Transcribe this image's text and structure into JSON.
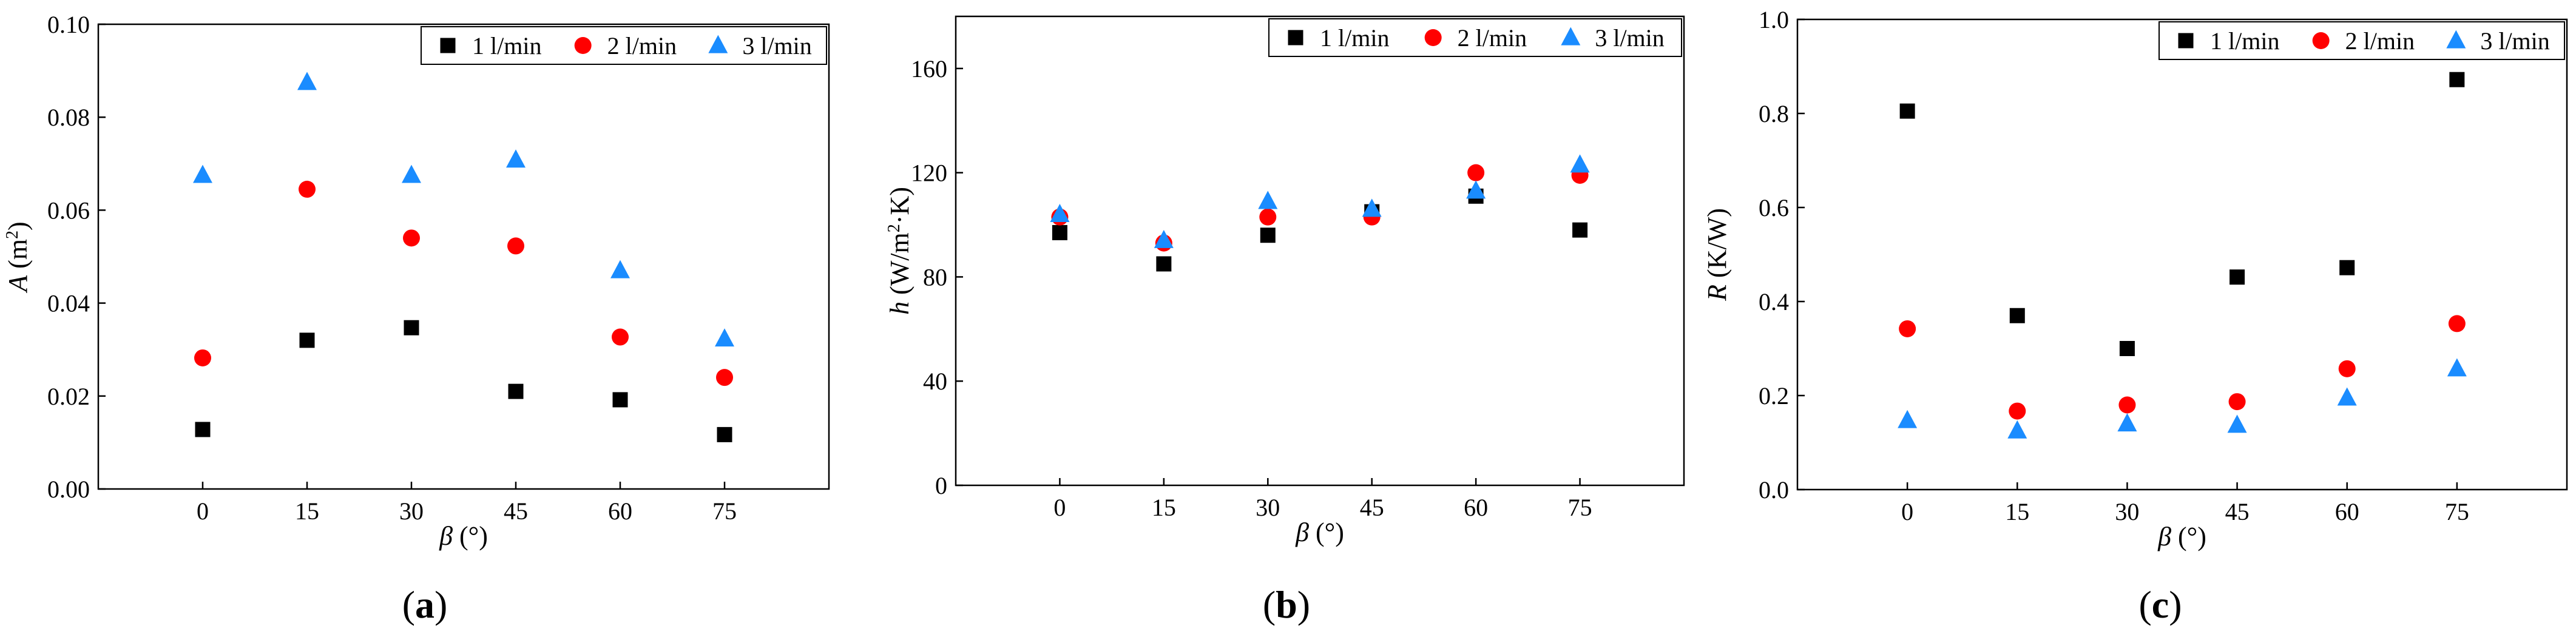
{
  "chart_data": [
    {
      "type": "scatter",
      "panel": "a",
      "panel_label": "(a)",
      "panel_letter": "a",
      "ylabel_var": "A",
      "ylabel_unit_pre": " (m",
      "ylabel_unit_sup": "2",
      "ylabel_unit_post": ")",
      "xlabel_var": "β",
      "xlabel_unit": " (°)",
      "x": [
        0,
        15,
        30,
        45,
        60,
        75
      ],
      "xticks": [
        "0",
        "15",
        "30",
        "45",
        "60",
        "75"
      ],
      "xlim": [
        -15,
        90
      ],
      "ylim": [
        0,
        0.1
      ],
      "yticks": [
        0,
        0.02,
        0.04,
        0.06,
        0.08,
        0.1
      ],
      "ytick_labels": [
        "0.00",
        "0.02",
        "0.04",
        "0.06",
        "0.08",
        "0.10"
      ],
      "legend_position": "top-right",
      "series": [
        {
          "name": "1 l/min",
          "marker": "square",
          "color": "#000000",
          "values": [
            0.0128,
            0.032,
            0.0347,
            0.021,
            0.0192,
            0.0117
          ]
        },
        {
          "name": "2 l/min",
          "marker": "circle",
          "color": "#ff0000",
          "values": [
            0.0282,
            0.0645,
            0.054,
            0.0523,
            0.0327,
            0.024
          ]
        },
        {
          "name": "3 l/min",
          "marker": "triangle",
          "color": "#1a8cff",
          "values": [
            0.0675,
            0.0875,
            0.0675,
            0.0708,
            0.047,
            0.0323
          ]
        }
      ]
    },
    {
      "type": "scatter",
      "panel": "b",
      "panel_label": "(b)",
      "panel_letter": "b",
      "ylabel_var": "h",
      "ylabel_unit_pre": " (W/m",
      "ylabel_unit_sup": "2",
      "ylabel_unit_post": "·K)",
      "xlabel_var": "β",
      "xlabel_unit": " (°)",
      "x": [
        0,
        15,
        30,
        45,
        60,
        75
      ],
      "xticks": [
        "0",
        "15",
        "30",
        "45",
        "60",
        "75"
      ],
      "xlim": [
        -15,
        90
      ],
      "ylim": [
        0,
        180
      ],
      "yticks": [
        0,
        40,
        80,
        120,
        160
      ],
      "ytick_labels": [
        "0",
        "40",
        "80",
        "120",
        "160"
      ],
      "legend_position": "top-right",
      "series": [
        {
          "name": "1 l/min",
          "marker": "square",
          "color": "#000000",
          "values": [
            97,
            85,
            96,
            105,
            111,
            98
          ]
        },
        {
          "name": "2 l/min",
          "marker": "circle",
          "color": "#ff0000",
          "values": [
            103,
            93,
            103,
            103,
            120,
            119
          ]
        },
        {
          "name": "3 l/min",
          "marker": "triangle",
          "color": "#1a8cff",
          "values": [
            104,
            94,
            109,
            106,
            113,
            123
          ]
        }
      ]
    },
    {
      "type": "scatter",
      "panel": "c",
      "panel_label": "(c)",
      "panel_letter": "c",
      "ylabel_var": "R",
      "ylabel_unit_pre": " (K/W)",
      "ylabel_unit_sup": "",
      "ylabel_unit_post": "",
      "xlabel_var": "β",
      "xlabel_unit": " (°)",
      "x": [
        0,
        15,
        30,
        45,
        60,
        75
      ],
      "xticks": [
        "0",
        "15",
        "30",
        "45",
        "60",
        "75"
      ],
      "xlim": [
        -15,
        90
      ],
      "ylim": [
        0,
        1.0
      ],
      "yticks": [
        0,
        0.2,
        0.4,
        0.6,
        0.8,
        1.0
      ],
      "ytick_labels": [
        "0.0",
        "0.2",
        "0.4",
        "0.6",
        "0.8",
        "1.0"
      ],
      "legend_position": "top-right",
      "series": [
        {
          "name": "1 l/min",
          "marker": "square",
          "color": "#000000",
          "values": [
            0.805,
            0.37,
            0.3,
            0.452,
            0.472,
            0.872
          ]
        },
        {
          "name": "2 l/min",
          "marker": "circle",
          "color": "#ff0000",
          "values": [
            0.342,
            0.167,
            0.18,
            0.187,
            0.257,
            0.353
          ]
        },
        {
          "name": "3 l/min",
          "marker": "triangle",
          "color": "#1a8cff",
          "values": [
            0.147,
            0.125,
            0.14,
            0.137,
            0.195,
            0.257
          ]
        }
      ]
    }
  ]
}
